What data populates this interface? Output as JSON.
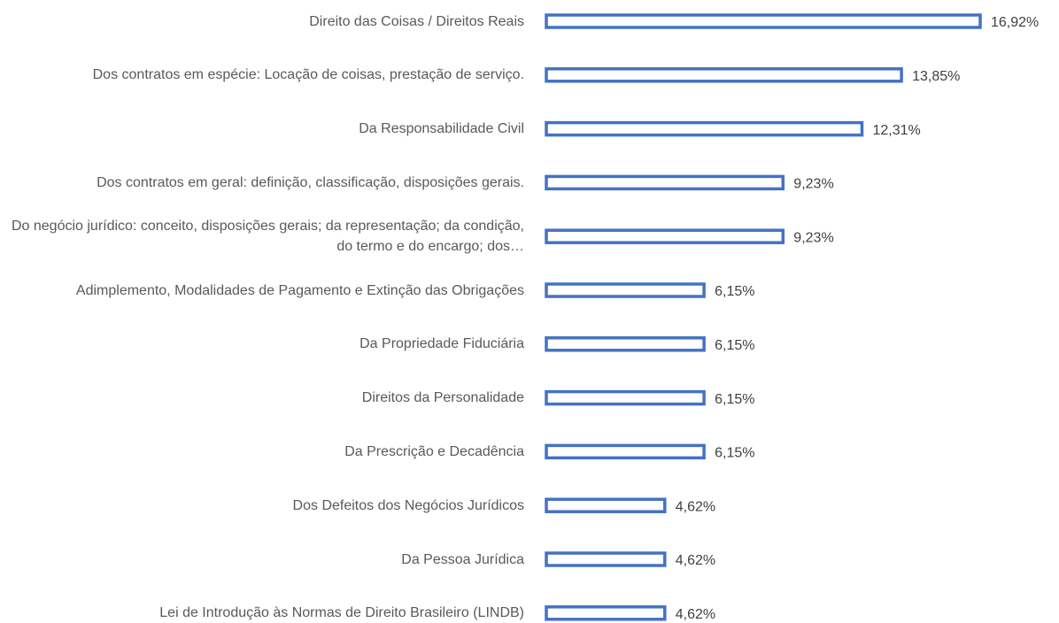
{
  "chart_data": {
    "type": "bar",
    "orientation": "horizontal",
    "color": "#4472c4",
    "categories": [
      "Direito das Coisas / Direitos Reais",
      "Dos contratos em espécie: Locação de coisas, prestação de serviço.",
      "Da Responsabilidade Civil",
      "Dos contratos em geral: definição, classificação, disposições gerais.",
      "Do negócio jurídico: conceito, disposições gerais; da representação; da condição, do termo e do encargo; dos…",
      "Adimplemento, Modalidades de Pagamento e Extinção das Obrigações",
      "Da Propriedade Fiduciária",
      "Direitos da Personalidade",
      "Da Prescrição e Decadência",
      "Dos Defeitos dos Negócios Jurídicos",
      "Da Pessoa Jurídica",
      "Lei de Introdução às Normas de Direito Brasileiro (LINDB)"
    ],
    "values": [
      16.92,
      13.85,
      12.31,
      9.23,
      9.23,
      6.15,
      6.15,
      6.15,
      6.15,
      4.62,
      4.62,
      4.62
    ],
    "value_labels": [
      "16,92%",
      "13,85%",
      "12,31%",
      "9,23%",
      "9,23%",
      "6,15%",
      "6,15%",
      "6,15%",
      "6,15%",
      "4,62%",
      "4,62%",
      "4,62%"
    ]
  }
}
